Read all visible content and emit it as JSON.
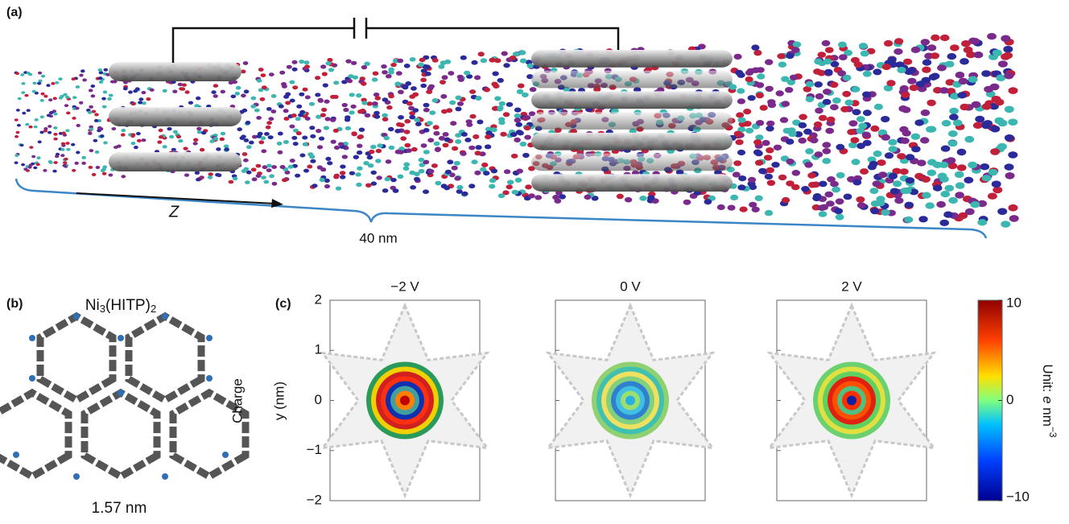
{
  "panel_a": {
    "label": "(a)",
    "axis_label": "Z",
    "length_label": "40 nm"
  },
  "panel_b": {
    "label": "(b)",
    "title_parts": [
      "Ni",
      "3",
      "(HITP)",
      "2"
    ],
    "size_label": "1.57 nm"
  },
  "panel_c": {
    "label": "(c)",
    "titles": [
      "−2 V",
      "0 V",
      "2 V"
    ],
    "y_label_lines": [
      "Charge",
      "y (nm)"
    ],
    "ylim": [
      -2,
      2
    ],
    "yticks": [
      {
        "value": -2,
        "label": "−2"
      },
      {
        "value": -1,
        "label": "−1"
      },
      0,
      1,
      2
    ],
    "colorbar": {
      "lim": [
        -10,
        10
      ],
      "ticks": [
        {
          "value": -10,
          "label": "−10"
        },
        0,
        10
      ],
      "label_parts": [
        "Unit: ",
        "e",
        " nm",
        "−3"
      ]
    }
  }
}
